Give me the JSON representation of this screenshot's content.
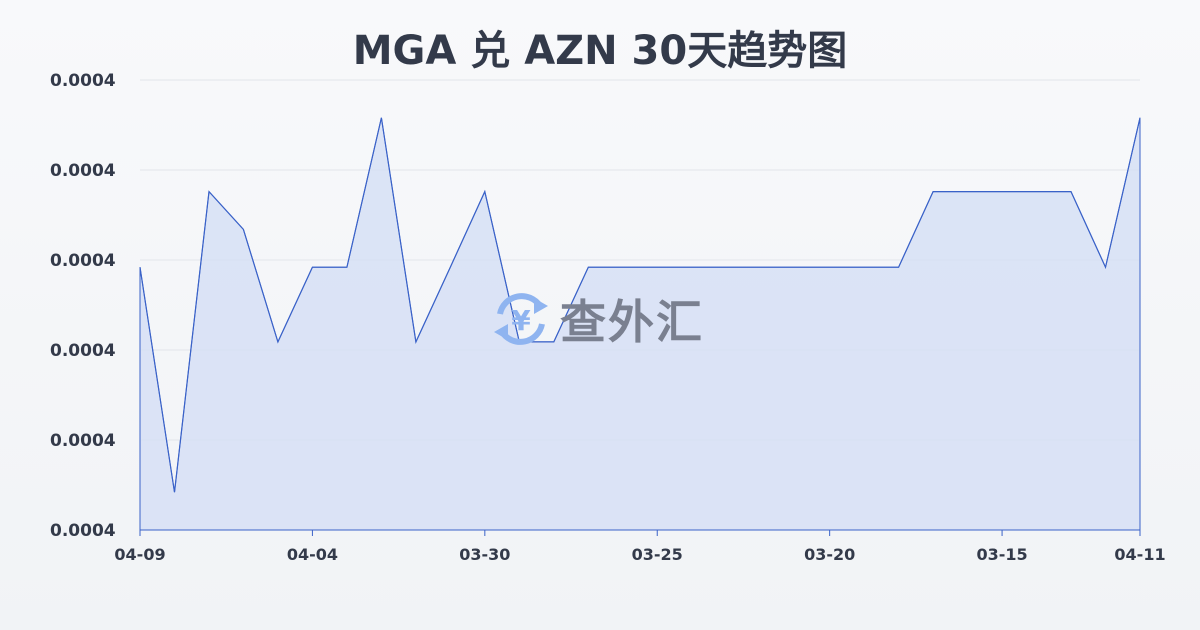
{
  "chart_data": {
    "type": "area",
    "title": "MGA 兑 AZN 30天趋势图",
    "xlabel": "",
    "ylabel": "",
    "ylim": [
      0.000375,
      0.000425
    ],
    "yticks": [
      0.000375,
      0.000385,
      0.000395,
      0.000405,
      0.000415,
      0.000425
    ],
    "ytick_labels": [
      "0.0004",
      "0.0004",
      "0.0004",
      "0.0004",
      "0.0004",
      "0.0004"
    ],
    "xtick_indices": [
      0,
      5,
      10,
      15,
      20,
      25,
      29
    ],
    "xtick_labels": [
      "04-09",
      "04-04",
      "03-30",
      "03-25",
      "03-20",
      "03-15",
      "04-11"
    ],
    "values": [
      0.0004042,
      0.0003792,
      0.0004126,
      0.0004084,
      0.0003959,
      0.0004042,
      0.0004042,
      0.0004208,
      0.0003959,
      0.0004042,
      0.0004126,
      0.0003959,
      0.0003959,
      0.0004042,
      0.0004042,
      0.0004042,
      0.0004042,
      0.0004042,
      0.0004042,
      0.0004042,
      0.0004042,
      0.0004042,
      0.0004042,
      0.0004126,
      0.0004126,
      0.0004126,
      0.0004126,
      0.0004126,
      0.0004042,
      0.0004208
    ],
    "grid": true,
    "legend": "none",
    "colors": {
      "line": "#3a62c8",
      "fill": "#d5def5",
      "grid": "#e2e5ea",
      "text": "#333a4a"
    }
  },
  "watermark": {
    "text": "查外汇",
    "icon": "yen-exchange-icon",
    "icon_color": "#8fb4f0"
  }
}
